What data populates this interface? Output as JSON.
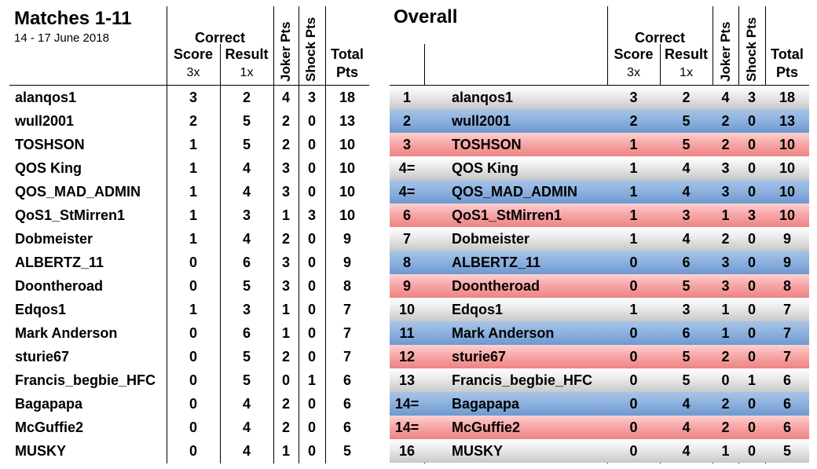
{
  "left_panel": {
    "title": "Matches 1-11",
    "subtitle": "14 - 17 June 2018",
    "headers": {
      "correct": "Correct",
      "score": "Score",
      "result": "Result",
      "score_mult": "3x",
      "result_mult": "1x",
      "joker": "Joker Pts",
      "shock": "Shock Pts",
      "total_line1": "Total",
      "total_line2": "Pts"
    },
    "rows": [
      {
        "name": "alanqos1",
        "score": "3",
        "result": "2",
        "joker": "4",
        "shock": "3",
        "total": "18"
      },
      {
        "name": "wull2001",
        "score": "2",
        "result": "5",
        "joker": "2",
        "shock": "0",
        "total": "13"
      },
      {
        "name": "TOSHSON",
        "score": "1",
        "result": "5",
        "joker": "2",
        "shock": "0",
        "total": "10"
      },
      {
        "name": "QOS King",
        "score": "1",
        "result": "4",
        "joker": "3",
        "shock": "0",
        "total": "10"
      },
      {
        "name": "QOS_MAD_ADMIN",
        "score": "1",
        "result": "4",
        "joker": "3",
        "shock": "0",
        "total": "10"
      },
      {
        "name": "QoS1_StMirren1",
        "score": "1",
        "result": "3",
        "joker": "1",
        "shock": "3",
        "total": "10"
      },
      {
        "name": "Dobmeister",
        "score": "1",
        "result": "4",
        "joker": "2",
        "shock": "0",
        "total": "9"
      },
      {
        "name": "ALBERTZ_11",
        "score": "0",
        "result": "6",
        "joker": "3",
        "shock": "0",
        "total": "9"
      },
      {
        "name": "Doontheroad",
        "score": "0",
        "result": "5",
        "joker": "3",
        "shock": "0",
        "total": "8"
      },
      {
        "name": "Edqos1",
        "score": "1",
        "result": "3",
        "joker": "1",
        "shock": "0",
        "total": "7"
      },
      {
        "name": "Mark Anderson",
        "score": "0",
        "result": "6",
        "joker": "1",
        "shock": "0",
        "total": "7"
      },
      {
        "name": "sturie67",
        "score": "0",
        "result": "5",
        "joker": "2",
        "shock": "0",
        "total": "7"
      },
      {
        "name": "Francis_begbie_HFC",
        "score": "0",
        "result": "5",
        "joker": "0",
        "shock": "1",
        "total": "6"
      },
      {
        "name": "Bagapapa",
        "score": "0",
        "result": "4",
        "joker": "2",
        "shock": "0",
        "total": "6"
      },
      {
        "name": "McGuffie2",
        "score": "0",
        "result": "4",
        "joker": "2",
        "shock": "0",
        "total": "6"
      },
      {
        "name": "MUSKY",
        "score": "0",
        "result": "4",
        "joker": "1",
        "shock": "0",
        "total": "5"
      }
    ]
  },
  "right_panel": {
    "title": "Overall",
    "headers": {
      "correct": "Correct",
      "score": "Score",
      "result": "Result",
      "score_mult": "3x",
      "result_mult": "1x",
      "joker": "Joker Pts",
      "shock": "Shock Pts",
      "total_line1": "Total",
      "total_line2": "Pts"
    },
    "band_colors": {
      "grey": "#d4d4d4",
      "blue": "#8fb3df",
      "red": "#f7a8a8"
    },
    "rows": [
      {
        "rank": "1",
        "name": "alanqos1",
        "score": "3",
        "result": "2",
        "joker": "4",
        "shock": "3",
        "total": "18",
        "band": "grey"
      },
      {
        "rank": "2",
        "name": "wull2001",
        "score": "2",
        "result": "5",
        "joker": "2",
        "shock": "0",
        "total": "13",
        "band": "blue"
      },
      {
        "rank": "3",
        "name": "TOSHSON",
        "score": "1",
        "result": "5",
        "joker": "2",
        "shock": "0",
        "total": "10",
        "band": "red"
      },
      {
        "rank": "4=",
        "name": "QOS King",
        "score": "1",
        "result": "4",
        "joker": "3",
        "shock": "0",
        "total": "10",
        "band": "grey"
      },
      {
        "rank": "4=",
        "name": "QOS_MAD_ADMIN",
        "score": "1",
        "result": "4",
        "joker": "3",
        "shock": "0",
        "total": "10",
        "band": "blue"
      },
      {
        "rank": "6",
        "name": "QoS1_StMirren1",
        "score": "1",
        "result": "3",
        "joker": "1",
        "shock": "3",
        "total": "10",
        "band": "red"
      },
      {
        "rank": "7",
        "name": "Dobmeister",
        "score": "1",
        "result": "4",
        "joker": "2",
        "shock": "0",
        "total": "9",
        "band": "grey"
      },
      {
        "rank": "8",
        "name": "ALBERTZ_11",
        "score": "0",
        "result": "6",
        "joker": "3",
        "shock": "0",
        "total": "9",
        "band": "blue"
      },
      {
        "rank": "9",
        "name": "Doontheroad",
        "score": "0",
        "result": "5",
        "joker": "3",
        "shock": "0",
        "total": "8",
        "band": "red"
      },
      {
        "rank": "10",
        "name": "Edqos1",
        "score": "1",
        "result": "3",
        "joker": "1",
        "shock": "0",
        "total": "7",
        "band": "grey"
      },
      {
        "rank": "11",
        "name": "Mark Anderson",
        "score": "0",
        "result": "6",
        "joker": "1",
        "shock": "0",
        "total": "7",
        "band": "blue"
      },
      {
        "rank": "12",
        "name": "sturie67",
        "score": "0",
        "result": "5",
        "joker": "2",
        "shock": "0",
        "total": "7",
        "band": "red"
      },
      {
        "rank": "13",
        "name": "Francis_begbie_HFC",
        "score": "0",
        "result": "5",
        "joker": "0",
        "shock": "1",
        "total": "6",
        "band": "grey"
      },
      {
        "rank": "14=",
        "name": "Bagapapa",
        "score": "0",
        "result": "4",
        "joker": "2",
        "shock": "0",
        "total": "6",
        "band": "blue"
      },
      {
        "rank": "14=",
        "name": "McGuffie2",
        "score": "0",
        "result": "4",
        "joker": "2",
        "shock": "0",
        "total": "6",
        "band": "red"
      },
      {
        "rank": "16",
        "name": "MUSKY",
        "score": "0",
        "result": "4",
        "joker": "1",
        "shock": "0",
        "total": "5",
        "band": "grey"
      }
    ]
  }
}
